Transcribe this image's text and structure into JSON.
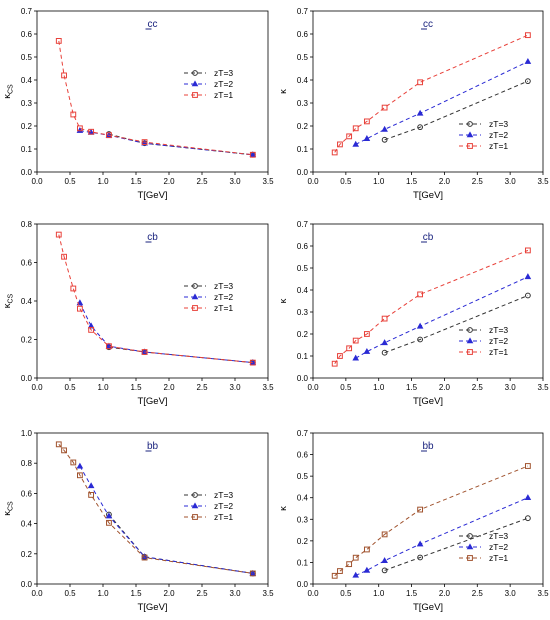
{
  "chart_data": [
    {
      "type": "line",
      "title": "cc",
      "title_underline_char": "c",
      "xlabel": "T[GeV]",
      "ylabel": "κ",
      "ylabel_sub": "CS",
      "xlim": [
        0.0,
        3.5
      ],
      "ylim": [
        0.0,
        0.7
      ],
      "xticks": [
        "0.0",
        "0.5",
        "1.0",
        "1.5",
        "2.0",
        "2.5",
        "3.0",
        "3.5"
      ],
      "yticks": [
        "0.0",
        "0.1",
        "0.2",
        "0.3",
        "0.4",
        "0.5",
        "0.6",
        "0.7"
      ],
      "legend_position": "center-right",
      "series": [
        {
          "name": "zT=3",
          "color": "#333333",
          "marker": "circle",
          "x": [
            1.09,
            1.63,
            3.27
          ],
          "y": [
            0.165,
            0.125,
            0.075
          ]
        },
        {
          "name": "zT=2",
          "color": "#2a2ad4",
          "marker": "triangle",
          "x": [
            0.65,
            0.82,
            1.09,
            1.63,
            3.27
          ],
          "y": [
            0.18,
            0.172,
            0.16,
            0.125,
            0.075
          ]
        },
        {
          "name": "zT=1",
          "color": "#e8413a",
          "marker": "square",
          "x": [
            0.33,
            0.41,
            0.55,
            0.65,
            0.82,
            1.09,
            1.63,
            3.27
          ],
          "y": [
            0.57,
            0.42,
            0.25,
            0.19,
            0.175,
            0.16,
            0.13,
            0.075
          ]
        }
      ]
    },
    {
      "type": "line",
      "title": "cc",
      "title_underline_char": "c",
      "xlabel": "T[GeV]",
      "ylabel": "κ",
      "ylabel_sub": "",
      "xlim": [
        0.0,
        3.5
      ],
      "ylim": [
        0.0,
        0.7
      ],
      "xticks": [
        "0.0",
        "0.5",
        "1.0",
        "1.5",
        "2.0",
        "2.5",
        "3.0",
        "3.5"
      ],
      "yticks": [
        "0.0",
        "0.1",
        "0.2",
        "0.3",
        "0.4",
        "0.5",
        "0.6",
        "0.7"
      ],
      "legend_position": "bottom-right",
      "series": [
        {
          "name": "zT=3",
          "color": "#333333",
          "marker": "circle",
          "x": [
            1.09,
            1.63,
            3.27
          ],
          "y": [
            0.14,
            0.195,
            0.395
          ]
        },
        {
          "name": "zT=2",
          "color": "#2a2ad4",
          "marker": "triangle",
          "x": [
            0.65,
            0.82,
            1.09,
            1.63,
            3.27
          ],
          "y": [
            0.12,
            0.145,
            0.185,
            0.255,
            0.48
          ]
        },
        {
          "name": "zT=1",
          "color": "#e8413a",
          "marker": "square",
          "x": [
            0.33,
            0.41,
            0.55,
            0.65,
            0.82,
            1.09,
            1.63,
            3.27
          ],
          "y": [
            0.085,
            0.12,
            0.155,
            0.19,
            0.22,
            0.28,
            0.39,
            0.595
          ]
        }
      ]
    },
    {
      "type": "line",
      "title": "cb",
      "title_underline_char": "c",
      "xlabel": "T[GeV]",
      "ylabel": "κ",
      "ylabel_sub": "CS",
      "xlim": [
        0.0,
        3.5
      ],
      "ylim": [
        0.0,
        0.8
      ],
      "xticks": [
        "0.0",
        "0.5",
        "1.0",
        "1.5",
        "2.0",
        "2.5",
        "3.0",
        "3.5"
      ],
      "yticks": [
        "0.0",
        "0.2",
        "0.4",
        "0.6",
        "0.8"
      ],
      "legend_position": "center-right",
      "series": [
        {
          "name": "zT=3",
          "color": "#333333",
          "marker": "circle",
          "x": [
            1.09,
            1.63,
            3.27
          ],
          "y": [
            0.16,
            0.135,
            0.08
          ]
        },
        {
          "name": "zT=2",
          "color": "#2a2ad4",
          "marker": "triangle",
          "x": [
            0.65,
            0.82,
            1.09,
            1.63,
            3.27
          ],
          "y": [
            0.39,
            0.27,
            0.165,
            0.135,
            0.08
          ]
        },
        {
          "name": "zT=1",
          "color": "#e8413a",
          "marker": "square",
          "x": [
            0.33,
            0.41,
            0.55,
            0.65,
            0.82,
            1.09,
            1.63,
            3.27
          ],
          "y": [
            0.745,
            0.63,
            0.465,
            0.36,
            0.25,
            0.165,
            0.135,
            0.08
          ]
        }
      ]
    },
    {
      "type": "line",
      "title": "cb",
      "title_underline_char": "c",
      "xlabel": "T[GeV]",
      "ylabel": "κ",
      "ylabel_sub": "",
      "xlim": [
        0.0,
        3.5
      ],
      "ylim": [
        0.0,
        0.7
      ],
      "xticks": [
        "0.0",
        "0.5",
        "1.0",
        "1.5",
        "2.0",
        "2.5",
        "3.0",
        "3.5"
      ],
      "yticks": [
        "0.0",
        "0.1",
        "0.2",
        "0.3",
        "0.4",
        "0.5",
        "0.6",
        "0.7"
      ],
      "legend_position": "bottom-right",
      "series": [
        {
          "name": "zT=3",
          "color": "#333333",
          "marker": "circle",
          "x": [
            1.09,
            1.63,
            3.27
          ],
          "y": [
            0.115,
            0.175,
            0.375
          ]
        },
        {
          "name": "zT=2",
          "color": "#2a2ad4",
          "marker": "triangle",
          "x": [
            0.65,
            0.82,
            1.09,
            1.63,
            3.27
          ],
          "y": [
            0.09,
            0.12,
            0.16,
            0.235,
            0.46
          ]
        },
        {
          "name": "zT=1",
          "color": "#e8413a",
          "marker": "square",
          "x": [
            0.33,
            0.41,
            0.55,
            0.65,
            0.82,
            1.09,
            1.63,
            3.27
          ],
          "y": [
            0.065,
            0.1,
            0.135,
            0.17,
            0.2,
            0.27,
            0.38,
            0.58
          ]
        }
      ]
    },
    {
      "type": "line",
      "title": "bb",
      "title_underline_char": "b",
      "xlabel": "T[GeV]",
      "ylabel": "κ",
      "ylabel_sub": "CS",
      "xlim": [
        0.0,
        3.5
      ],
      "ylim": [
        0.0,
        1.0
      ],
      "xticks": [
        "0.0",
        "0.5",
        "1.0",
        "1.5",
        "2.0",
        "2.5",
        "3.0",
        "3.5"
      ],
      "yticks": [
        "0.0",
        "0.2",
        "0.4",
        "0.6",
        "0.8",
        "1.0"
      ],
      "legend_position": "center-right",
      "series": [
        {
          "name": "zT=3",
          "color": "#333333",
          "marker": "circle",
          "x": [
            1.09,
            1.63,
            3.27
          ],
          "y": [
            0.46,
            0.18,
            0.07
          ]
        },
        {
          "name": "zT=2",
          "color": "#2a2ad4",
          "marker": "triangle",
          "x": [
            0.65,
            0.82,
            1.09,
            1.63,
            3.27
          ],
          "y": [
            0.78,
            0.65,
            0.45,
            0.18,
            0.07
          ]
        },
        {
          "name": "zT=1",
          "color": "#a0522d",
          "marker": "square",
          "x": [
            0.33,
            0.41,
            0.55,
            0.65,
            0.82,
            1.09,
            1.63,
            3.27
          ],
          "y": [
            0.925,
            0.885,
            0.805,
            0.72,
            0.59,
            0.405,
            0.175,
            0.07
          ]
        }
      ]
    },
    {
      "type": "line",
      "title": "bb",
      "title_underline_char": "b",
      "xlabel": "T[GeV]",
      "ylabel": "κ",
      "ylabel_sub": "",
      "xlim": [
        0.0,
        3.5
      ],
      "ylim": [
        0.0,
        0.7
      ],
      "xticks": [
        "0.0",
        "0.5",
        "1.0",
        "1.5",
        "2.0",
        "2.5",
        "3.0",
        "3.5"
      ],
      "yticks": [
        "0.0",
        "0.1",
        "0.2",
        "0.3",
        "0.4",
        "0.5",
        "0.6",
        "0.7"
      ],
      "legend_position": "bottom-right",
      "series": [
        {
          "name": "zT=3",
          "color": "#333333",
          "marker": "circle",
          "x": [
            1.09,
            1.63,
            3.27
          ],
          "y": [
            0.063,
            0.123,
            0.305
          ]
        },
        {
          "name": "zT=2",
          "color": "#2a2ad4",
          "marker": "triangle",
          "x": [
            0.65,
            0.82,
            1.09,
            1.63,
            3.27
          ],
          "y": [
            0.04,
            0.063,
            0.108,
            0.185,
            0.4
          ]
        },
        {
          "name": "zT=1",
          "color": "#a0522d",
          "marker": "square",
          "x": [
            0.33,
            0.41,
            0.55,
            0.65,
            0.82,
            1.09,
            1.63,
            3.27
          ],
          "y": [
            0.038,
            0.06,
            0.092,
            0.122,
            0.16,
            0.23,
            0.345,
            0.547
          ]
        }
      ]
    }
  ]
}
